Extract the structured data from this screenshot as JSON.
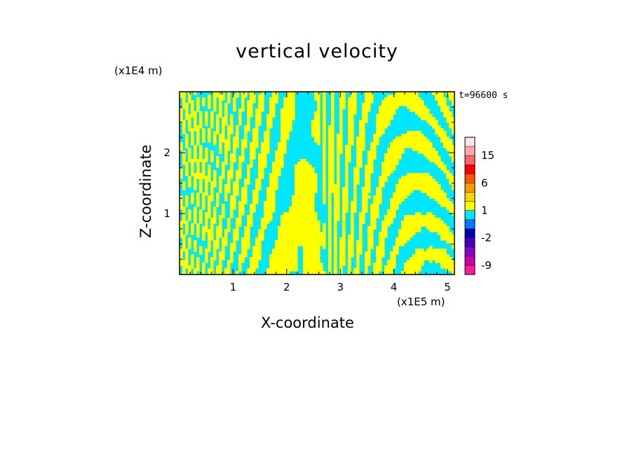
{
  "chart_data": {
    "type": "heatmap",
    "title": "vertical velocity",
    "xlabel": "X-coordinate",
    "ylabel": "Z-coordinate",
    "x_unit": "(x1E5 m)",
    "z_unit": "(x1E4 m)",
    "time_label": "t=96600 s",
    "xlim": [
      0,
      5.13
    ],
    "ylim": [
      0,
      3.0
    ],
    "x_ticks": [
      1,
      2,
      3,
      4,
      5
    ],
    "y_ticks": [
      1,
      2
    ],
    "x_tick_labels": [
      "1",
      "2",
      "3",
      "4",
      "5"
    ],
    "y_tick_labels": [
      "1",
      "2"
    ],
    "field_colors": {
      "positive": "#ffff00",
      "negative": "#00e6ff"
    },
    "colorbar": {
      "levels": [
        {
          "label": "",
          "color": "#ff1aa3"
        },
        {
          "label": "-9",
          "color": "#cc00aa"
        },
        {
          "label": "",
          "color": "#8800cc"
        },
        {
          "label": "",
          "color": "#4400bb"
        },
        {
          "label": "-2",
          "color": "#0000b3"
        },
        {
          "label": "",
          "color": "#0077ff"
        },
        {
          "label": "",
          "color": "#00e6ff"
        },
        {
          "label": "1",
          "color": "#ffff00"
        },
        {
          "label": "",
          "color": "#ffd200"
        },
        {
          "label": "",
          "color": "#ff9900"
        },
        {
          "label": "6",
          "color": "#ff5500"
        },
        {
          "label": "",
          "color": "#ff0000"
        },
        {
          "label": "",
          "color": "#ff6666"
        },
        {
          "label": "15",
          "color": "#ffaaaa"
        },
        {
          "label": "",
          "color": "#ffe4e4"
        }
      ]
    }
  }
}
